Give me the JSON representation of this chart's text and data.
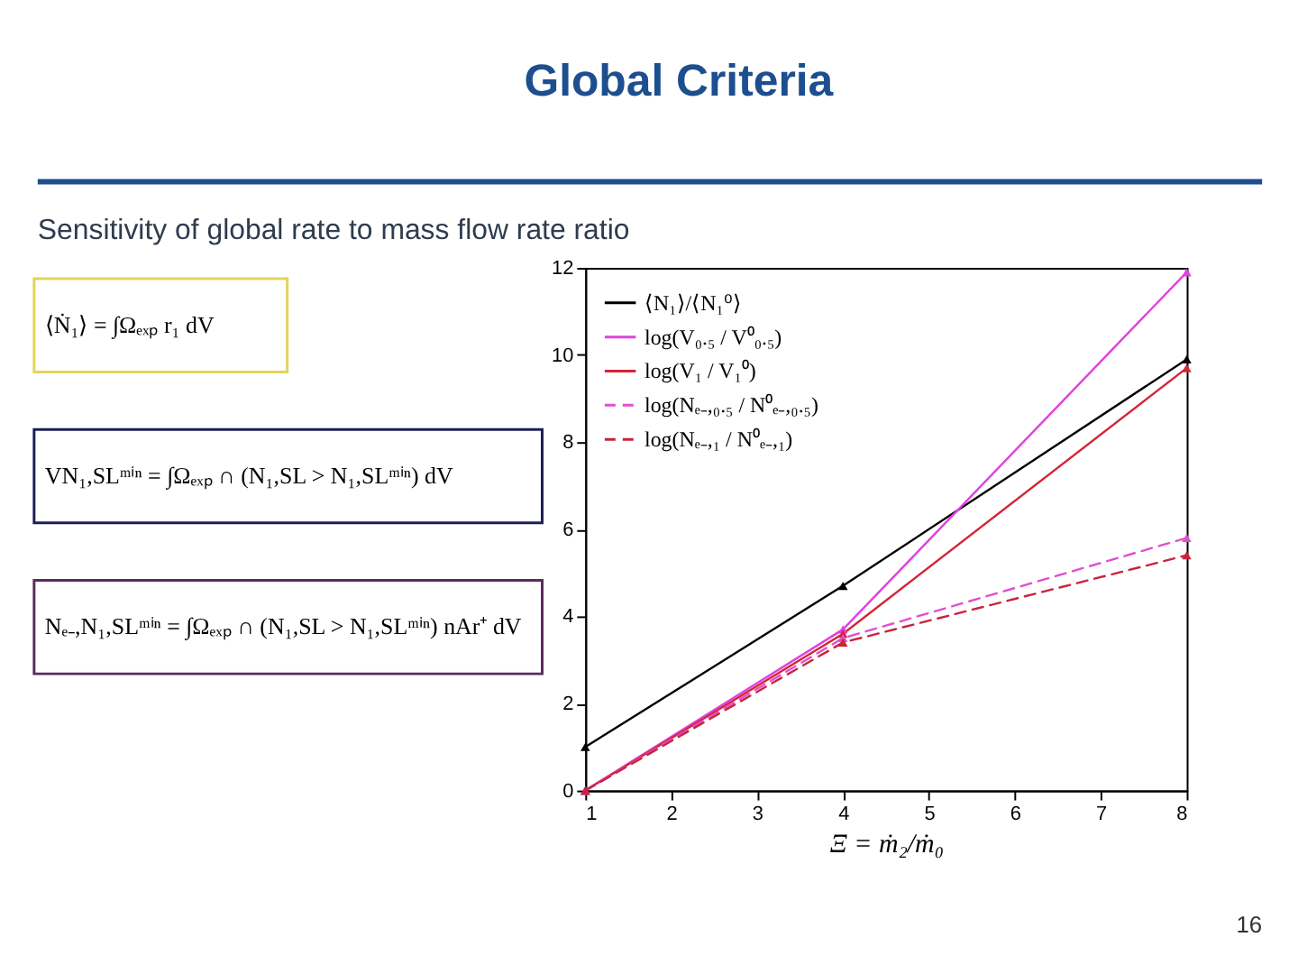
{
  "chart_data": {
    "type": "line",
    "title": "Global Criteria",
    "subtitle": "Sensitivity of global rate to mass flow rate ratio",
    "xlabel": "Ξ = ṁ₂/ṁ₀",
    "x": [
      1,
      4,
      8
    ],
    "series": [
      {
        "name": "⟨N₁⟩/⟨N₁⁰⟩",
        "color": "#000000",
        "values": [
          1.0,
          4.7,
          9.9
        ],
        "line_style": "solid"
      },
      {
        "name": "log(V₀.₅ / V⁰₀.₅)",
        "color": "#e040e0",
        "values": [
          0,
          3.7,
          11.9
        ],
        "line_style": "solid"
      },
      {
        "name": "log(V₁ / V₁⁰)",
        "color": "#d42535",
        "values": [
          0,
          3.6,
          9.7
        ],
        "line_style": "solid"
      },
      {
        "name": "log(Nₑ₋,₀.₅ / N⁰ₑ₋,₀.₅)",
        "color": "#e04fd0",
        "values": [
          0,
          3.5,
          5.8
        ],
        "line_style": "dashed"
      },
      {
        "name": "log(Nₑ₋,₁ / N⁰ₑ₋,₁)",
        "color": "#c8243c",
        "values": [
          0,
          3.4,
          5.4
        ],
        "line_style": "dashed"
      }
    ],
    "xlim": [
      1,
      8
    ],
    "ylim": [
      0,
      12
    ],
    "xticks": [
      1,
      2,
      3,
      4,
      5,
      6,
      7,
      8
    ],
    "yticks": [
      0,
      2,
      4,
      6,
      8,
      10,
      12
    ],
    "grid": false,
    "legend": "top left",
    "marker": "triangle",
    "annotations": [
      "⟨Ṅ₁⟩ = ∫Ωₑₓₚ r₁ dV",
      "VN₁,SLᵐⁱⁿ = ∫Ωₑₓₚ ∩ (N₁,SL > N₁,SLᵐⁱⁿ) dV",
      "Nₑ₋,N₁,SLᵐⁱⁿ = ∫Ωₑₓₚ ∩ (N₁,SL > N₁,SLᵐⁱⁿ) nAr⁺ dV",
      "16"
    ]
  }
}
